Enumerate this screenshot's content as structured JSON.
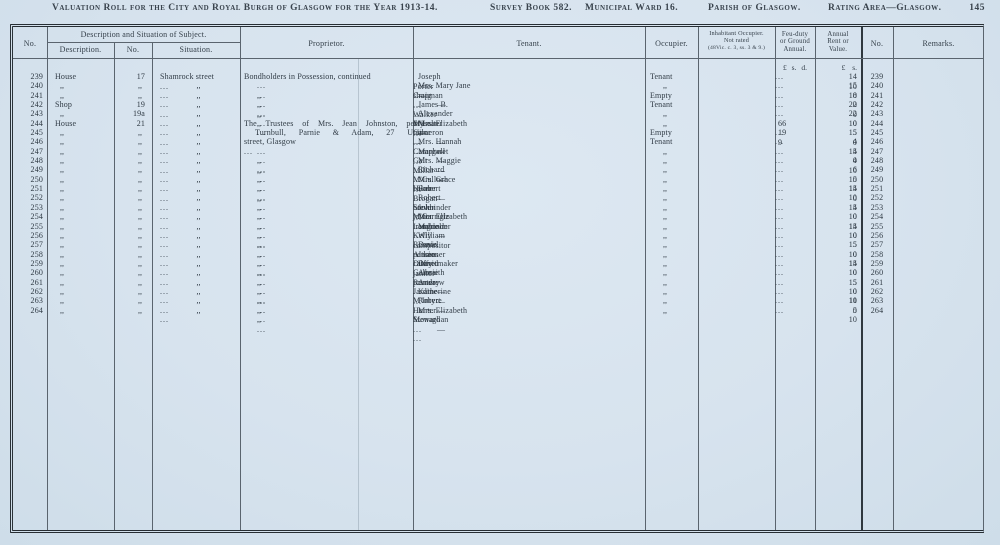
{
  "header": {
    "title": "Valuation Roll for the City and Royal Burgh of Glasgow for the Year 1913-14.",
    "survey_book": "Survey Book 582.",
    "municipal_ward": "Municipal Ward 16.",
    "parish": "Parish of Glasgow.",
    "rating_area": "Rating Area—Glasgow.",
    "page_number": "145"
  },
  "table": {
    "columns": {
      "row_no": "No.",
      "group": "Description and Situation of Subject.",
      "description": "Description.",
      "street_no": "No.",
      "situation": "Situation.",
      "proprietor": "Proprietor.",
      "tenant": "Tenant.",
      "occupier": "Occupier.",
      "inhabitant_line1": "Inhabitant Occupier.",
      "inhabitant_line2": "Not rated",
      "inhabitant_line3": "(48Vic. c. 3, ss. 3 & 9.)",
      "feu_line1": "Feu-duty",
      "feu_line2": "or Ground",
      "feu_line3": "Annual.",
      "rent_line1": "Annual",
      "rent_line2": "Rent or",
      "rent_line3": "Value.",
      "no2": "No.",
      "remarks": "Remarks.",
      "feu_money": "£ s. d.",
      "rent_money": "£ s."
    },
    "ditto": ",,",
    "dots": "...",
    "rows": [
      {
        "no": "239",
        "d": "House",
        "n": "17",
        "s": "Shamrock street",
        "p": {
          "t": "text",
          "v": "Bondholders in Possession, continued"
        },
        "fn": "Joseph",
        "sn": "Porter",
        "oc": "shopman",
        "occ": "Tenant",
        "feu": null,
        "rp": "14",
        "rs": "10"
      },
      {
        "no": "240",
        "d": ",,",
        "n": ",,",
        "s": ",,",
        "p": {
          "t": "dots3"
        },
        "fn": "Mrs. Mary Jane",
        "sn": "Craig",
        "oc": "—",
        "occ": ",,",
        "feu": null,
        "rp": "15",
        "rs": "0"
      },
      {
        "no": "241",
        "d": ",,",
        "n": ",,",
        "s": ",,",
        "p": {
          "t": "dots3"
        },
        "fn": "—",
        "sn": "",
        "oc": "",
        "occ": "Empty",
        "feu": null,
        "rp": "18",
        "rs": "0"
      },
      {
        "no": "242",
        "d": "Shop",
        "n": "19",
        "s": ",,",
        "p": {
          "t": "dots3"
        },
        "fn": "James B.",
        "sn": "Walker",
        "oc": "drysalter",
        "occ": "Tenant",
        "feu": null,
        "rp": "22",
        "rs": "0"
      },
      {
        "no": "243",
        "d": ",,",
        "n": "19a",
        "s": ",,",
        "p": {
          "t": "dots3"
        },
        "fn": "Alexander",
        "sn": "M'Lean",
        "oc": "tailor",
        "occ": ",,",
        "feu": null,
        "rp": "22",
        "rs": "0"
      },
      {
        "no": "244",
        "d": "House",
        "n": "21",
        "s": ",,",
        "p": {
          "t": "just",
          "v": "The Trustees of Mrs. Jean Johnston, per"
        },
        "fn": "Mrs. Elizabeth",
        "sn": "Cameron",
        "oc": "—",
        "occ": ",,",
        "feu": [
          "66",
          "19",
          "9"
        ],
        "rp": "10",
        "rs": "5"
      },
      {
        "no": "245",
        "d": ",,",
        "n": ",,",
        "s": ",,",
        "p": {
          "t": "just2",
          "v": "Turnbull, Parnie & Adam, 27 Union"
        },
        "fn": "—",
        "sn": "—",
        "oc": "—",
        "occ": "Empty",
        "feu": null,
        "rp": "15",
        "rs": "0"
      },
      {
        "no": "246",
        "d": ",,",
        "n": ",,",
        "s": ",,",
        "p": {
          "t": "textdots",
          "v": "street, Glasgow"
        },
        "fn": "Mrs. Hannah",
        "sn": "Campbell",
        "oc": "—",
        "occ": "Tenant",
        "feu": null,
        "rp": "4",
        "rs": "15"
      },
      {
        "no": "247",
        "d": ",,",
        "n": ",,",
        "s": ",,",
        "p": {
          "t": "dots3"
        },
        "fn": "Margaret",
        "sn": "Galt",
        "oc": "—",
        "occ": ",,",
        "feu": null,
        "rp": "4",
        "rs": "0"
      },
      {
        "no": "248",
        "d": ",,",
        "n": ",,",
        "s": ",,",
        "p": {
          "t": "dots3"
        },
        "fn": "Mrs. Maggie",
        "sn": "Millar",
        "oc": "—",
        "occ": ",,",
        "feu": null,
        "rp": "4",
        "rs": "10"
      },
      {
        "no": "249",
        "d": ",,",
        "n": ",,",
        "s": ",,",
        "p": {
          "t": "dots3"
        },
        "fn": "Richard",
        "sn": "M'Culloch",
        "oc": "baker",
        "occ": ",,",
        "feu": null,
        "rp": "6",
        "rs": "5"
      },
      {
        "no": "250",
        "d": ",,",
        "n": ",,",
        "s": ",,",
        "p": {
          "t": "dots3"
        },
        "fn": "Mrs. Grace",
        "sn": "Hunter",
        "oc": "—",
        "occ": ",,",
        "feu": null,
        "rp": "10",
        "rs": "15"
      },
      {
        "no": "251",
        "d": ",,",
        "n": ",,",
        "s": ",,",
        "p": {
          "t": "dots3"
        },
        "fn": "Robert",
        "sn": "Brogan",
        "oc": "bookbinder",
        "occ": ",,",
        "feu": null,
        "rp": "14",
        "rs": "0"
      },
      {
        "no": "252",
        "d": ",,",
        "n": ",,",
        "s": ",,",
        "p": {
          "t": "dots3"
        },
        "fn": "Robert",
        "sn": "Steven",
        "oc": "joiner",
        "occ": ",,",
        "feu": null,
        "rp": "10",
        "rs": "5"
      },
      {
        "no": "253",
        "d": ",,",
        "n": ",,",
        "s": ",,",
        "p": {
          "t": "dots3"
        },
        "fn": "John",
        "sn": "M'Garrigle",
        "oc": "irongrinder",
        "occ": ",,",
        "feu": null,
        "rp": "14",
        "rs": "0"
      },
      {
        "no": "254",
        "d": ",,",
        "n": ",,",
        "s": ",,",
        "p": {
          "t": "dots3"
        },
        "fn": "Mrs. Elizabeth",
        "sn": "Lambie",
        "oc": "—",
        "occ": ",,",
        "feu": null,
        "rp": "10",
        "rs": "15"
      },
      {
        "no": "255",
        "d": ",,",
        "n": ",,",
        "s": ",,",
        "p": {
          "t": "dots3"
        },
        "fn": "Malcolm",
        "sn": "Kelly",
        "oc": "compositor",
        "occ": ",,",
        "feu": null,
        "rp": "14",
        "rs": "0"
      },
      {
        "no": "256",
        "d": ",,",
        "n": ",,",
        "s": ",,",
        "p": {
          "t": "dots3"
        },
        "fn": "William",
        "sn": "Rennie",
        "oc": "pensioner",
        "occ": ",,",
        "feu": null,
        "rp": "10",
        "rs": "5"
      },
      {
        "no": "257",
        "d": ",,",
        "n": ",,",
        "s": ",,",
        "p": {
          "t": "dots3"
        },
        "fn": "David",
        "sn": "Aitken",
        "oc": "cabinetmaker",
        "occ": ",,",
        "feu": null,
        "rp": "15",
        "rs": "0"
      },
      {
        "no": "258",
        "d": ",,",
        "n": ",,",
        "s": ",,",
        "p": {
          "t": "dots3"
        },
        "fn": "James",
        "sn": "Duffy",
        "oc": "janitor",
        "occ": ",,",
        "feu": null,
        "rp": "10",
        "rs": "15"
      },
      {
        "no": "259",
        "d": ",,",
        "n": ",,",
        "s": ",,",
        "p": {
          "t": "dots3"
        },
        "fn": "David",
        "sn": "Galbraith",
        "oc": "printer",
        "occ": ",,",
        "feu": null,
        "rp": "14",
        "rs": "0"
      },
      {
        "no": "260",
        "d": ",,",
        "n": ",,",
        "s": ",,",
        "p": {
          "t": "dots3"
        },
        "fn": "Annie",
        "sn": "Ramsay",
        "oc": "—",
        "occ": ",,",
        "feu": null,
        "rp": "10",
        "rs": "5"
      },
      {
        "no": "261",
        "d": ",,",
        "n": ",,",
        "s": ",,",
        "p": {
          "t": "dots3"
        },
        "fn": "Andrew",
        "sn": "Jardine",
        "oc": "—",
        "occ": ",,",
        "feu": null,
        "rp": "15",
        "rs": "0"
      },
      {
        "no": "262",
        "d": ",,",
        "n": ",,",
        "s": ",,",
        "p": {
          "t": "dots3"
        },
        "fn": "Katherine",
        "sn": "M'Intyre",
        "oc": "—",
        "occ": ",,",
        "feu": null,
        "rp": "10",
        "rs": "10"
      },
      {
        "no": "263",
        "d": ",,",
        "n": ",,",
        "s": ",,",
        "p": {
          "t": "dots3"
        },
        "fn": "Robert",
        "sn": "Hunter",
        "oc": "Steward",
        "occ": ",,",
        "feu": null,
        "rp": "11",
        "rs": "0"
      },
      {
        "no": "264",
        "d": ",,",
        "n": ",,",
        "s": ",,",
        "p": {
          "t": "dots3"
        },
        "fn": "Mrs. Elizabeth",
        "sn": "Monaghan",
        "oc": "—",
        "occ": ",,",
        "feu": null,
        "rp": "5",
        "rs": "10"
      }
    ]
  }
}
